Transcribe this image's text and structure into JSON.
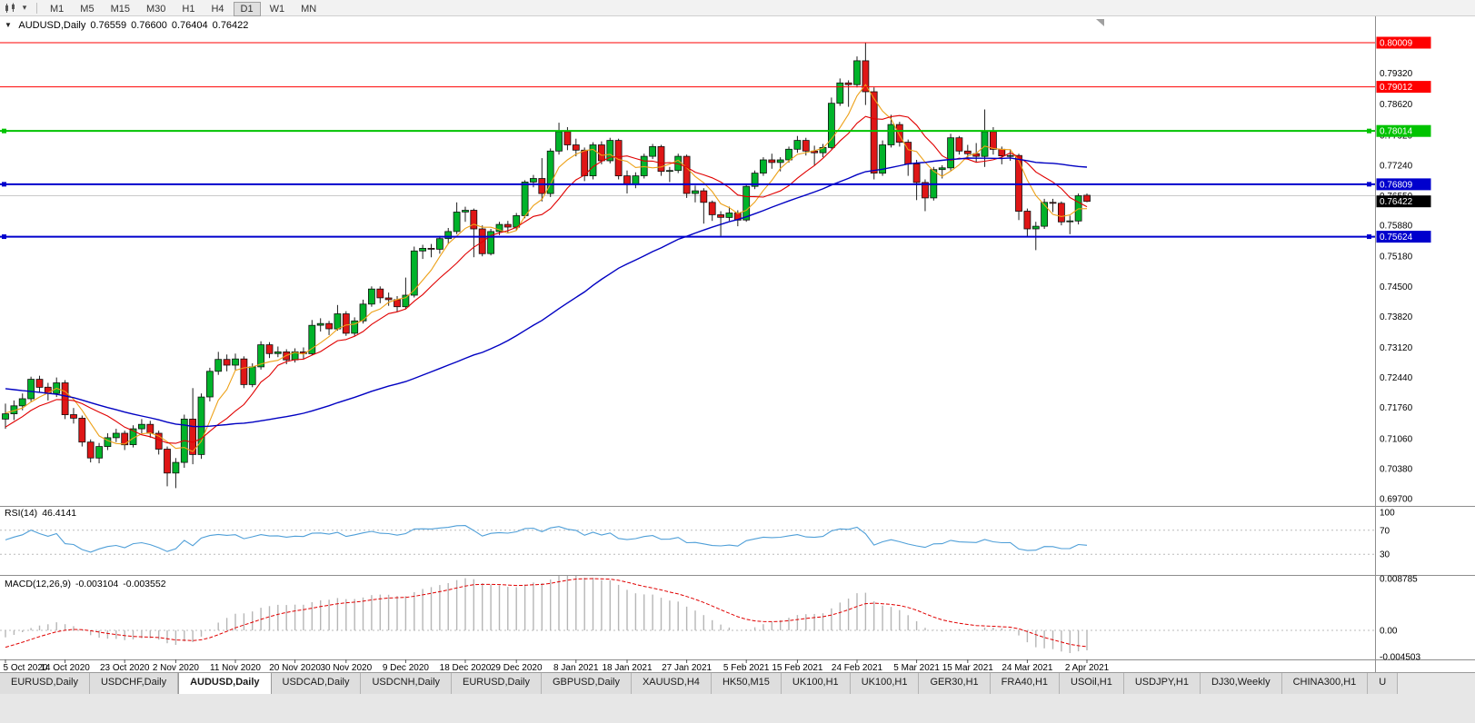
{
  "toolbar": {
    "timeframes": [
      "M1",
      "M5",
      "M15",
      "M30",
      "H1",
      "H4",
      "D1",
      "W1",
      "MN"
    ],
    "active": "D1"
  },
  "icons": {
    "collapse_arrow": "▼",
    "dropdown_arrow": "▾"
  },
  "chart_data": {
    "type": "candlestick",
    "symbol": "AUDUSD",
    "timeframe": "Daily",
    "title_line": {
      "symbol": "AUDUSD,Daily",
      "open": "0.76559",
      "high": "0.76600",
      "low": "0.76404",
      "close": "0.76422"
    },
    "view": {
      "price_top": 0.80564,
      "price_bottom": 0.69578
    },
    "price_ticks": [
      "0.79320",
      "0.78620",
      "0.77920",
      "0.77240",
      "0.76550",
      "0.75880",
      "0.75180",
      "0.74500",
      "0.73820",
      "0.73120",
      "0.72440",
      "0.71760",
      "0.71060",
      "0.70380",
      "0.69700"
    ],
    "levels": [
      {
        "price": 0.80009,
        "label": "0.80009",
        "color": "#fe0000",
        "width": 1,
        "handles": false
      },
      {
        "price": 0.79012,
        "label": "0.79012",
        "color": "#fe0000",
        "width": 1,
        "handles": false
      },
      {
        "price": 0.78014,
        "label": "0.78014",
        "color": "#00c300",
        "width": 2,
        "handles": true
      },
      {
        "price": 0.76809,
        "label": "0.76809",
        "color": "#0000cd",
        "width": 2,
        "handles": true
      },
      {
        "price": 0.75624,
        "label": "0.75624",
        "color": "#0000cd",
        "width": 2,
        "handles": true
      }
    ],
    "grid_line_price": 0.7655,
    "current_price": {
      "value": 0.76422,
      "label": "0.76422",
      "color": "#000000"
    },
    "colors": {
      "bull": "#00b32a",
      "bear": "#df1616",
      "wick": "#1f1f1f",
      "rsi": "#4f9fd8",
      "macd_hist": "#b6b6b6",
      "macd_signal": "#e00000"
    },
    "moving_averages": [
      {
        "period": 5,
        "color": "#eda118"
      },
      {
        "period": 10,
        "color": "#e00000"
      },
      {
        "period": 50,
        "color": "#0000c2"
      }
    ],
    "candle_format": [
      "open",
      "high",
      "low",
      "close"
    ],
    "ma_prehistory": [
      0.729,
      0.73,
      0.731,
      0.7318,
      0.7325,
      0.733,
      0.7337,
      0.7345,
      0.735,
      0.7358,
      0.7365,
      0.737,
      0.7373,
      0.737,
      0.7362,
      0.7355,
      0.7345,
      0.733,
      0.731,
      0.729,
      0.727,
      0.725,
      0.7235,
      0.722,
      0.7208,
      0.7195,
      0.7185,
      0.7178,
      0.717,
      0.7162,
      0.7155,
      0.7148,
      0.714,
      0.713,
      0.7118,
      0.7105,
      0.709,
      0.7075,
      0.706,
      0.7048,
      0.704,
      0.706,
      0.708,
      0.71,
      0.712,
      0.714,
      0.7155,
      0.7165,
      0.7172,
      0.7165
    ],
    "candles": [
      [
        0.715,
        0.7185,
        0.7128,
        0.7162
      ],
      [
        0.7162,
        0.7192,
        0.7148,
        0.718
      ],
      [
        0.718,
        0.7208,
        0.717,
        0.7196
      ],
      [
        0.7196,
        0.7246,
        0.719,
        0.724
      ],
      [
        0.724,
        0.7248,
        0.721,
        0.7222
      ],
      [
        0.7222,
        0.7232,
        0.7192,
        0.7208
      ],
      [
        0.7208,
        0.7244,
        0.72,
        0.7232
      ],
      [
        0.7232,
        0.7238,
        0.715,
        0.716
      ],
      [
        0.716,
        0.7175,
        0.714,
        0.7152
      ],
      [
        0.7152,
        0.7158,
        0.7088,
        0.7098
      ],
      [
        0.7098,
        0.7104,
        0.7052,
        0.7062
      ],
      [
        0.7062,
        0.7096,
        0.705,
        0.7088
      ],
      [
        0.7088,
        0.7118,
        0.708,
        0.7108
      ],
      [
        0.7108,
        0.7128,
        0.7098,
        0.7118
      ],
      [
        0.7118,
        0.7124,
        0.708,
        0.7092
      ],
      [
        0.7092,
        0.7136,
        0.7086,
        0.7128
      ],
      [
        0.7128,
        0.715,
        0.7118,
        0.7138
      ],
      [
        0.7138,
        0.7146,
        0.7108,
        0.7118
      ],
      [
        0.7118,
        0.7124,
        0.707,
        0.7082
      ],
      [
        0.7082,
        0.7088,
        0.6998,
        0.7028
      ],
      [
        0.7028,
        0.7062,
        0.6994,
        0.7052
      ],
      [
        0.7052,
        0.716,
        0.704,
        0.715
      ],
      [
        0.715,
        0.722,
        0.7048,
        0.707
      ],
      [
        0.707,
        0.7208,
        0.706,
        0.72
      ],
      [
        0.72,
        0.7266,
        0.719,
        0.7258
      ],
      [
        0.7258,
        0.7302,
        0.725,
        0.7285
      ],
      [
        0.7285,
        0.7296,
        0.7258,
        0.7272
      ],
      [
        0.7272,
        0.7298,
        0.726,
        0.7286
      ],
      [
        0.7286,
        0.7292,
        0.722,
        0.7228
      ],
      [
        0.7228,
        0.7276,
        0.7222,
        0.7268
      ],
      [
        0.7268,
        0.7326,
        0.7262,
        0.7318
      ],
      [
        0.7318,
        0.7324,
        0.7288,
        0.7298
      ],
      [
        0.7298,
        0.7314,
        0.729,
        0.7302
      ],
      [
        0.7302,
        0.7308,
        0.7274,
        0.7284
      ],
      [
        0.7284,
        0.731,
        0.7278,
        0.7302
      ],
      [
        0.7302,
        0.7312,
        0.7286,
        0.7298
      ],
      [
        0.7298,
        0.7374,
        0.7294,
        0.7362
      ],
      [
        0.7362,
        0.7378,
        0.7348,
        0.7366
      ],
      [
        0.7366,
        0.7372,
        0.734,
        0.7354
      ],
      [
        0.7354,
        0.7408,
        0.735,
        0.7388
      ],
      [
        0.7388,
        0.7394,
        0.7338,
        0.7344
      ],
      [
        0.7344,
        0.738,
        0.7338,
        0.7372
      ],
      [
        0.7372,
        0.742,
        0.7366,
        0.741
      ],
      [
        0.741,
        0.745,
        0.7404,
        0.7444
      ],
      [
        0.7444,
        0.745,
        0.7412,
        0.7424
      ],
      [
        0.7424,
        0.7436,
        0.7406,
        0.742
      ],
      [
        0.742,
        0.7428,
        0.7392,
        0.7404
      ],
      [
        0.7404,
        0.747,
        0.7398,
        0.743
      ],
      [
        0.743,
        0.754,
        0.7425,
        0.753
      ],
      [
        0.753,
        0.7544,
        0.7512,
        0.7536
      ],
      [
        0.7536,
        0.7546,
        0.7516,
        0.7534
      ],
      [
        0.7534,
        0.7564,
        0.7524,
        0.7558
      ],
      [
        0.7558,
        0.7582,
        0.7546,
        0.7574
      ],
      [
        0.7574,
        0.764,
        0.7568,
        0.7618
      ],
      [
        0.7618,
        0.763,
        0.7596,
        0.7622
      ],
      [
        0.7622,
        0.7626,
        0.7516,
        0.758
      ],
      [
        0.758,
        0.7588,
        0.7518,
        0.7524
      ],
      [
        0.7524,
        0.758,
        0.752,
        0.7574
      ],
      [
        0.7574,
        0.7596,
        0.7566,
        0.759
      ],
      [
        0.759,
        0.7598,
        0.7572,
        0.7584
      ],
      [
        0.7584,
        0.7616,
        0.7576,
        0.761
      ],
      [
        0.761,
        0.769,
        0.7604,
        0.7686
      ],
      [
        0.7686,
        0.7702,
        0.7674,
        0.7694
      ],
      [
        0.7694,
        0.774,
        0.7642,
        0.766
      ],
      [
        0.766,
        0.7762,
        0.7652,
        0.7756
      ],
      [
        0.7756,
        0.782,
        0.7748,
        0.78
      ],
      [
        0.78,
        0.781,
        0.7758,
        0.777
      ],
      [
        0.777,
        0.7784,
        0.7744,
        0.7758
      ],
      [
        0.7758,
        0.7764,
        0.7688,
        0.77
      ],
      [
        0.77,
        0.7776,
        0.7692,
        0.777
      ],
      [
        0.777,
        0.7778,
        0.7726,
        0.7734
      ],
      [
        0.7734,
        0.7786,
        0.7728,
        0.778
      ],
      [
        0.778,
        0.7784,
        0.7692,
        0.77
      ],
      [
        0.77,
        0.7712,
        0.766,
        0.768
      ],
      [
        0.768,
        0.7708,
        0.7672,
        0.77
      ],
      [
        0.77,
        0.775,
        0.7694,
        0.7744
      ],
      [
        0.7744,
        0.7772,
        0.7738,
        0.7766
      ],
      [
        0.7766,
        0.777,
        0.77,
        0.771
      ],
      [
        0.771,
        0.772,
        0.7686,
        0.7712
      ],
      [
        0.7712,
        0.775,
        0.7706,
        0.7744
      ],
      [
        0.7744,
        0.7748,
        0.765,
        0.766
      ],
      [
        0.766,
        0.7678,
        0.764,
        0.7666
      ],
      [
        0.7666,
        0.7672,
        0.7592,
        0.764
      ],
      [
        0.764,
        0.7644,
        0.7598,
        0.7612
      ],
      [
        0.7612,
        0.762,
        0.7564,
        0.7606
      ],
      [
        0.7606,
        0.763,
        0.7598,
        0.7616
      ],
      [
        0.7616,
        0.7622,
        0.7586,
        0.76
      ],
      [
        0.76,
        0.768,
        0.7596,
        0.7676
      ],
      [
        0.7676,
        0.7712,
        0.767,
        0.7706
      ],
      [
        0.7706,
        0.7742,
        0.77,
        0.7736
      ],
      [
        0.7736,
        0.775,
        0.7716,
        0.773
      ],
      [
        0.773,
        0.7742,
        0.771,
        0.7736
      ],
      [
        0.7736,
        0.7766,
        0.773,
        0.776
      ],
      [
        0.776,
        0.779,
        0.7752,
        0.778
      ],
      [
        0.778,
        0.7786,
        0.7746,
        0.7756
      ],
      [
        0.7756,
        0.7768,
        0.7724,
        0.7752
      ],
      [
        0.7752,
        0.7772,
        0.7742,
        0.7764
      ],
      [
        0.7764,
        0.7877,
        0.776,
        0.7864
      ],
      [
        0.7864,
        0.792,
        0.7858,
        0.791
      ],
      [
        0.791,
        0.7916,
        0.7856,
        0.7906
      ],
      [
        0.7906,
        0.797,
        0.79,
        0.796
      ],
      [
        0.796,
        0.8001,
        0.786,
        0.789
      ],
      [
        0.789,
        0.79,
        0.7692,
        0.7706
      ],
      [
        0.7706,
        0.778,
        0.77,
        0.777
      ],
      [
        0.777,
        0.7838,
        0.7764,
        0.7816
      ],
      [
        0.7816,
        0.7822,
        0.7766,
        0.7776
      ],
      [
        0.7776,
        0.7782,
        0.77,
        0.7727
      ],
      [
        0.7727,
        0.7736,
        0.7645,
        0.7685
      ],
      [
        0.7685,
        0.7692,
        0.762,
        0.765
      ],
      [
        0.765,
        0.772,
        0.7644,
        0.7714
      ],
      [
        0.7714,
        0.7724,
        0.7694,
        0.7718
      ],
      [
        0.7718,
        0.7795,
        0.7712,
        0.7786
      ],
      [
        0.7786,
        0.779,
        0.7748,
        0.7756
      ],
      [
        0.7756,
        0.777,
        0.7738,
        0.775
      ],
      [
        0.775,
        0.7774,
        0.773,
        0.7744
      ],
      [
        0.7744,
        0.785,
        0.772,
        0.78
      ],
      [
        0.78,
        0.781,
        0.7748,
        0.776
      ],
      [
        0.776,
        0.7766,
        0.7726,
        0.7745
      ],
      [
        0.7745,
        0.776,
        0.7734,
        0.7746
      ],
      [
        0.7746,
        0.775,
        0.76,
        0.762
      ],
      [
        0.762,
        0.7626,
        0.7563,
        0.758
      ],
      [
        0.758,
        0.7596,
        0.7532,
        0.7586
      ],
      [
        0.7586,
        0.7648,
        0.758,
        0.764
      ],
      [
        0.764,
        0.7648,
        0.7618,
        0.7638
      ],
      [
        0.7638,
        0.7642,
        0.7588,
        0.7596
      ],
      [
        0.7596,
        0.761,
        0.7568,
        0.7598
      ],
      [
        0.7598,
        0.766,
        0.759,
        0.7655
      ],
      [
        0.76559,
        0.766,
        0.76404,
        0.76422
      ]
    ],
    "x_labels": [
      {
        "i": 0,
        "t": "5 Oct 2020"
      },
      {
        "i": 7,
        "t": "14 Oct 2020"
      },
      {
        "i": 14,
        "t": "23 Oct 2020"
      },
      {
        "i": 20,
        "t": "2 Nov 2020"
      },
      {
        "i": 27,
        "t": "11 Nov 2020"
      },
      {
        "i": 34,
        "t": "20 Nov 2020"
      },
      {
        "i": 40,
        "t": "30 Nov 2020"
      },
      {
        "i": 47,
        "t": "9 Dec 2020"
      },
      {
        "i": 54,
        "t": "18 Dec 2020"
      },
      {
        "i": 60,
        "t": "29 Dec 2020"
      },
      {
        "i": 67,
        "t": "8 Jan 2021"
      },
      {
        "i": 73,
        "t": "18 Jan 2021"
      },
      {
        "i": 80,
        "t": "27 Jan 2021"
      },
      {
        "i": 87,
        "t": "5 Feb 2021"
      },
      {
        "i": 93,
        "t": "15 Feb 2021"
      },
      {
        "i": 100,
        "t": "24 Feb 2021"
      },
      {
        "i": 107,
        "t": "5 Mar 2021"
      },
      {
        "i": 113,
        "t": "15 Mar 2021"
      },
      {
        "i": 120,
        "t": "24 Mar 2021"
      },
      {
        "i": 127,
        "t": "2 Apr 2021"
      }
    ],
    "rsi": {
      "name": "RSI(14)",
      "value": "46.4141",
      "period": 14,
      "levels": [
        70,
        30
      ],
      "axis_labels": [
        {
          "v": 100,
          "t": "100"
        },
        {
          "v": 70,
          "t": "70"
        },
        {
          "v": 30,
          "t": "30"
        }
      ]
    },
    "macd": {
      "name": "MACD(12,26,9)",
      "main_value": "-0.003104",
      "signal_value": "-0.003552",
      "fast": 12,
      "slow": 26,
      "signal": 9,
      "axis_labels": [
        {
          "v": 0.008785,
          "t": "0.008785"
        },
        {
          "v": 0,
          "t": "0.00"
        },
        {
          "v": -0.004503,
          "t": "-0.004503"
        }
      ]
    }
  },
  "tabs": [
    "EURUSD,Daily",
    "USDCHF,Daily",
    "AUDUSD,Daily",
    "USDCAD,Daily",
    "USDCNH,Daily",
    "EURUSD,Daily",
    "GBPUSD,Daily",
    "XAUUSD,H4",
    "HK50,M15",
    "UK100,H1",
    "UK100,H1",
    "GER30,H1",
    "FRA40,H1",
    "USOil,H1",
    "USDJPY,H1",
    "DJ30,Weekly",
    "CHINA300,H1",
    "U"
  ],
  "active_tab_index": 2
}
